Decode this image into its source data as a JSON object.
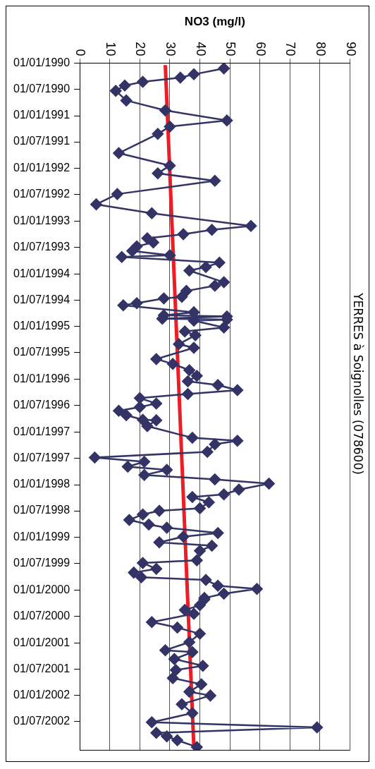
{
  "chart_data": {
    "type": "line",
    "orientation": "horizontal",
    "title": "YERRES à Soignolles (078600)",
    "xlabel": "NO3 (mg/l)",
    "xlim": [
      0,
      90
    ],
    "xticks": [
      0,
      10,
      20,
      30,
      40,
      50,
      60,
      70,
      80,
      90
    ],
    "ylim": [
      "2003-01-15",
      "1990-01-01"
    ],
    "yticks": [
      {
        "value": "1990-01-01",
        "label": "01/01/1990"
      },
      {
        "value": "1990-07-01",
        "label": "01/07/1990"
      },
      {
        "value": "1991-01-01",
        "label": "01/01/1991"
      },
      {
        "value": "1991-07-01",
        "label": "01/07/1991"
      },
      {
        "value": "1992-01-01",
        "label": "01/01/1992"
      },
      {
        "value": "1992-07-01",
        "label": "01/07/1992"
      },
      {
        "value": "1993-01-01",
        "label": "01/01/1993"
      },
      {
        "value": "1993-07-01",
        "label": "01/07/1993"
      },
      {
        "value": "1994-01-01",
        "label": "01/01/1994"
      },
      {
        "value": "1994-07-01",
        "label": "01/07/1994"
      },
      {
        "value": "1995-01-01",
        "label": "01/01/1995"
      },
      {
        "value": "1995-07-01",
        "label": "01/07/1995"
      },
      {
        "value": "1996-01-01",
        "label": "01/01/1996"
      },
      {
        "value": "1996-07-01",
        "label": "01/07/1996"
      },
      {
        "value": "1997-01-01",
        "label": "01/01/1997"
      },
      {
        "value": "1997-07-01",
        "label": "01/07/1997"
      },
      {
        "value": "1998-01-01",
        "label": "01/01/1998"
      },
      {
        "value": "1998-07-01",
        "label": "01/07/1998"
      },
      {
        "value": "1999-01-01",
        "label": "01/01/1999"
      },
      {
        "value": "1999-07-01",
        "label": "01/07/1999"
      },
      {
        "value": "2000-01-01",
        "label": "01/01/2000"
      },
      {
        "value": "2000-07-01",
        "label": "01/07/2000"
      },
      {
        "value": "2001-01-01",
        "label": "01/01/2001"
      },
      {
        "value": "2001-07-01",
        "label": "01/07/2001"
      },
      {
        "value": "2002-01-01",
        "label": "01/01/2002"
      },
      {
        "value": "2002-07-01",
        "label": "01/07/2002"
      }
    ],
    "grid": "x",
    "legend": false,
    "series": [
      {
        "color": "#333366",
        "marker": "diamond",
        "line_style": "solid",
        "x": [
          "1990-02-07",
          "1990-03-20",
          "1990-04-12",
          "1990-05-11",
          "1990-06-06",
          "1990-07-12",
          "1990-09-17",
          "1990-11-25",
          "1991-02-03",
          "1991-03-17",
          "1991-05-07",
          "1991-09-17",
          "1991-12-13",
          "1992-02-04",
          "1992-03-27",
          "1992-06-27",
          "1992-09-06",
          "1992-11-07",
          "1993-02-03",
          "1993-03-02",
          "1993-04-01",
          "1993-04-29",
          "1993-05-28",
          "1993-06-24",
          "1993-07-26",
          "1993-08-25",
          "1993-09-06",
          "1993-10-15",
          "1993-11-14",
          "1993-12-09",
          "1994-02-28",
          "1994-03-24",
          "1994-04-29",
          "1994-06-09",
          "1994-06-20",
          "1994-07-23",
          "1994-08-07",
          "1994-09-24",
          "1994-10-15",
          "1994-10-23",
          "1994-11-07",
          "1994-11-14",
          "1994-11-21",
          "1995-01-08",
          "1995-02-04",
          "1995-03-02",
          "1995-05-03",
          "1995-05-28",
          "1995-08-14",
          "1995-09-17",
          "1995-10-30",
          "1995-12-09",
          "1996-01-15",
          "1996-02-10",
          "1996-03-17",
          "1996-04-12",
          "1996-05-11",
          "1996-06-17",
          "1996-07-12",
          "1996-08-07",
          "1996-09-06",
          "1996-10-08",
          "1996-10-11",
          "1996-11-21",
          "1997-02-10",
          "1997-03-02",
          "1997-03-27",
          "1997-05-18",
          "1997-06-27",
          "1997-07-26",
          "1997-08-29",
          "1997-09-20",
          "1997-10-26",
          "1997-11-25",
          "1997-12-24",
          "1998-02-04",
          "1998-03-09",
          "1998-03-27",
          "1998-05-03",
          "1998-06-13",
          "1998-07-01",
          "1998-07-26",
          "1998-09-02",
          "1998-10-04",
          "1998-10-26",
          "1998-12-02",
          "1998-12-27",
          "1999-02-04",
          "1999-02-28",
          "1999-04-04",
          "1999-06-09",
          "1999-06-27",
          "1999-08-07",
          "1999-09-02",
          "1999-10-04",
          "1999-10-23",
          "1999-12-02",
          "1999-12-24",
          "2000-01-26",
          "2000-02-25",
          "2000-03-06",
          "2000-04-15",
          "2000-05-18",
          "2000-06-13",
          "2000-08-10",
          "2000-09-17",
          "2000-10-30",
          "2000-12-27",
          "2001-02-21",
          "2001-03-06",
          "2001-04-23",
          "2001-06-09",
          "2001-07-08",
          "2001-09-02",
          "2001-10-15",
          "2001-12-06",
          "2002-01-01",
          "2002-03-02",
          "2002-05-03",
          "2002-07-05",
          "2002-08-10",
          "2002-09-17",
          "2002-10-11",
          "2002-11-07",
          "2002-12-24"
        ],
        "values": [
          48,
          38,
          33.5,
          21,
          15,
          12,
          15.5,
          28.5,
          49,
          30,
          26,
          13,
          30,
          26,
          45,
          12.5,
          5.5,
          24,
          57,
          44,
          34.5,
          22.5,
          24.5,
          19,
          17.5,
          30,
          14,
          46.5,
          42,
          36.5,
          48,
          45,
          35.5,
          34,
          28,
          19,
          14.5,
          38,
          28,
          49,
          27.5,
          49,
          38,
          48,
          35,
          38.5,
          33,
          38,
          25.5,
          31,
          36.5,
          39,
          36,
          46,
          52.5,
          36,
          20,
          25.5,
          20,
          13,
          15.5,
          21,
          25.5,
          22.5,
          37.5,
          52.5,
          45,
          42.5,
          5,
          21.5,
          16,
          29,
          21.5,
          45,
          63,
          53,
          48,
          37.5,
          43,
          40,
          26.5,
          21,
          16.5,
          23,
          29,
          46,
          34.5,
          26.5,
          44,
          40,
          39,
          21,
          25.5,
          18,
          20.5,
          42,
          46,
          59,
          48,
          41.5,
          41.5,
          40,
          35,
          38,
          24,
          32.5,
          40,
          36.5,
          28.5,
          37.5,
          31.5,
          41,
          32,
          31,
          40.5,
          36.5,
          43.5,
          34,
          37.5,
          24,
          79,
          25.5,
          29,
          32.5,
          39
        ]
      },
      {
        "type": "line",
        "color": "#ee1c24",
        "marker": "none",
        "line_style": "solid",
        "x": [
          "1990-01-15",
          "2002-12-24"
        ],
        "values": [
          28.5,
          38
        ]
      }
    ]
  }
}
